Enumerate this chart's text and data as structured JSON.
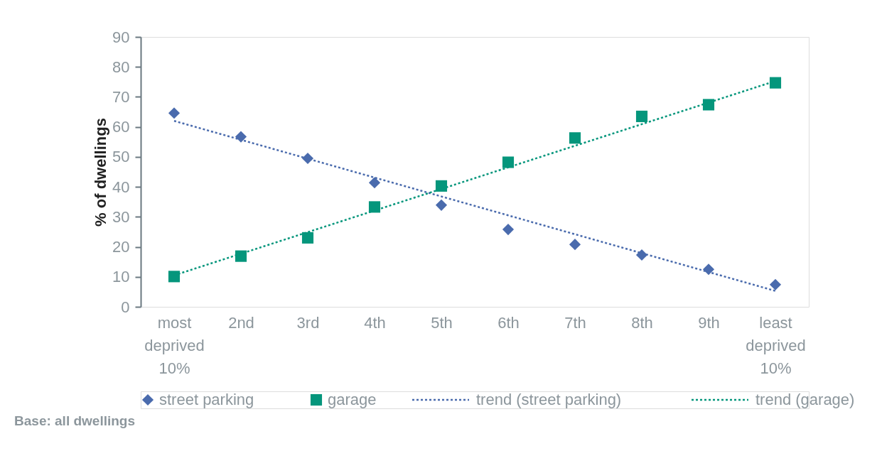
{
  "chart_data": {
    "type": "scatter",
    "ylabel": "% of dwellings",
    "categories": [
      "most deprived 10%",
      "2nd",
      "3rd",
      "4th",
      "5th",
      "6th",
      "7th",
      "8th",
      "9th",
      "least deprived 10%"
    ],
    "series": [
      {
        "name": "street parking",
        "marker": "diamond",
        "color": "#4a6bad",
        "values": [
          64.6,
          56.7,
          49.5,
          41.4,
          33.9,
          25.8,
          20.8,
          17.3,
          12.5,
          7.4
        ]
      },
      {
        "name": "garage",
        "marker": "square",
        "color": "#05967c",
        "values": [
          10.1,
          16.9,
          23,
          33.3,
          40.3,
          48.2,
          56.3,
          63.5,
          67.4,
          74.7
        ]
      },
      {
        "name": "trend (street parking)",
        "type": "line",
        "line_style": "dotted",
        "color": "#4a6bad",
        "values": [
          62,
          55.7,
          49.4,
          43.1,
          36.8,
          30.5,
          24.2,
          17.9,
          11.6,
          5.3
        ]
      },
      {
        "name": "trend (garage)",
        "type": "line",
        "line_style": "dotted",
        "color": "#05967c",
        "values": [
          10.5,
          17.7,
          24.9,
          32.1,
          39.3,
          46.5,
          53.7,
          60.9,
          68.1,
          75.3
        ]
      }
    ],
    "ylim": [
      0,
      90
    ],
    "yticks": [
      0,
      10,
      20,
      30,
      40,
      50,
      60,
      70,
      80,
      90
    ],
    "grid": false,
    "legend": "bottom",
    "annotations": [
      "Base: all dwellings"
    ]
  }
}
